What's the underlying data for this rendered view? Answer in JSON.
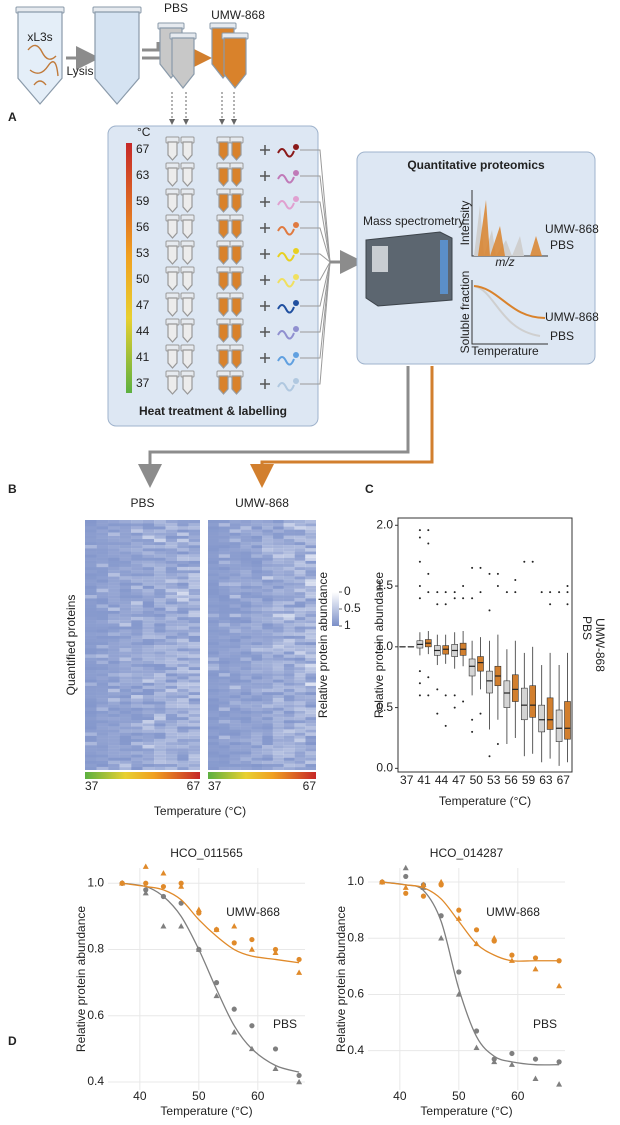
{
  "panel_labels": [
    "A",
    "B",
    "C",
    "D"
  ],
  "schematic": {
    "sample": "xL3s",
    "step": "Lysis",
    "control": "PBS",
    "treatment": "UMW-868",
    "temperature_unit": "°C",
    "temperatures": [
      67,
      63,
      59,
      56,
      53,
      50,
      47,
      44,
      41,
      37
    ],
    "heat_title": "Heat treatment & labelling",
    "proteomics_title": "Quantitative proteomics",
    "instrument": "Mass spectrometry",
    "spectrum_y": "Intensity",
    "spectrum_x": "m/z",
    "curve_y": "Soluble fraction",
    "curve_x": "Temperature"
  },
  "heatmaps": {
    "titles": [
      "PBS",
      "UMW-868"
    ],
    "y_label": "Quantified proteins",
    "legend_title": "Relative protein abundance",
    "legend_ticks": [
      0,
      0.5,
      1
    ],
    "x_range": [
      37,
      67
    ],
    "x_label": "Temperature (°C)"
  },
  "chart_data": [
    {
      "type": "box",
      "x_label": "Temperature (°C)",
      "y_label": "Relative protein abundance",
      "categories": [
        "37",
        "41",
        "44",
        "47",
        "50",
        "53",
        "56",
        "59",
        "63",
        "67"
      ],
      "ylim": [
        -0.03,
        2.06
      ],
      "yticks": [
        {
          "value": 0,
          "label": "0.0"
        },
        {
          "value": 0.5,
          "label": "0.5"
        },
        {
          "value": 1,
          "label": "1.0"
        },
        {
          "value": 1.5,
          "label": "1.5"
        },
        {
          "value": 2,
          "label": "2.0"
        }
      ],
      "series": [
        {
          "name": "PBS",
          "color": "#d4d4d4",
          "text_color": "#8c8c8c",
          "whisker_low": [
            1,
            0.93,
            0.85,
            0.82,
            0.6,
            0.32,
            0.2,
            0.1,
            0.05,
            0.02
          ],
          "q1": [
            1,
            0.99,
            0.93,
            0.92,
            0.76,
            0.62,
            0.5,
            0.4,
            0.3,
            0.22
          ],
          "median": [
            1,
            1.02,
            0.97,
            0.97,
            0.84,
            0.72,
            0.62,
            0.52,
            0.4,
            0.33
          ],
          "q3": [
            1,
            1.05,
            1.01,
            1.02,
            0.9,
            0.8,
            0.72,
            0.66,
            0.52,
            0.48
          ],
          "whisker_high": [
            1,
            1.12,
            1.1,
            1.12,
            1.05,
            1.05,
            0.98,
            0.95,
            0.85,
            0.85
          ],
          "outliers": [
            [],
            [
              1.96,
              1.9,
              1.7,
              1.5,
              1.4,
              0.8,
              0.7,
              0.6
            ],
            [
              1.45,
              1.35,
              0.65,
              0.45
            ],
            [
              1.45,
              1.4,
              0.6,
              0.5
            ],
            [
              1.65,
              1.4,
              0.4,
              0.3
            ],
            [
              1.6,
              1.3,
              0.1
            ],
            [
              1.45
            ],
            [
              1.7
            ],
            [
              1.45
            ],
            [
              1.45
            ]
          ]
        },
        {
          "name": "UMW-868",
          "color": "#d27f2e",
          "text_color": "#d27f2e",
          "whisker_low": [
            1,
            0.94,
            0.86,
            0.84,
            0.65,
            0.4,
            0.25,
            0.12,
            0.08,
            0.05
          ],
          "q1": [
            1,
            1,
            0.94,
            0.93,
            0.8,
            0.68,
            0.55,
            0.42,
            0.32,
            0.24
          ],
          "median": [
            1,
            1.03,
            0.98,
            0.98,
            0.87,
            0.76,
            0.65,
            0.52,
            0.4,
            0.33
          ],
          "q3": [
            1,
            1.06,
            1.01,
            1.03,
            0.92,
            0.84,
            0.77,
            0.68,
            0.58,
            0.55
          ],
          "whisker_high": [
            1,
            1.13,
            1.1,
            1.13,
            1.08,
            1.1,
            1.05,
            1,
            0.95,
            0.95
          ],
          "outliers": [
            [],
            [
              1.96,
              1.85,
              1.6,
              1.45,
              0.75,
              0.6
            ],
            [
              1.45,
              1.35,
              0.6,
              0.35
            ],
            [
              1.5,
              1.4,
              0.55
            ],
            [
              1.65,
              1.45,
              0.45
            ],
            [
              1.6,
              1.5,
              0.2
            ],
            [
              1.55,
              1.45
            ],
            [
              1.7
            ],
            [
              1.45,
              1.35
            ],
            [
              1.5,
              1.45,
              1.35
            ]
          ]
        }
      ]
    },
    {
      "type": "scatter_fit",
      "title": "HCO_011565",
      "x_label": "Temperature (°C)",
      "y_label": "Relative protein abundance",
      "x": [
        37,
        41,
        44,
        47,
        50,
        53,
        56,
        59,
        63,
        67
      ],
      "xlim": [
        34.6,
        68
      ],
      "xticks": [
        40,
        50,
        60
      ],
      "ylim": [
        0.376,
        1.046
      ],
      "yticks": [
        0.4,
        0.6,
        0.8,
        {
          "value": 1,
          "label": "1.0"
        }
      ],
      "grid": true,
      "series": [
        {
          "name": "PBS",
          "color": "#7f7f7f",
          "replicate_1": [
            1,
            0.98,
            0.96,
            0.94,
            0.8,
            0.7,
            0.62,
            0.57,
            0.5,
            0.42
          ],
          "replicate_2": [
            1,
            0.97,
            0.87,
            0.87,
            0.8,
            0.66,
            0.55,
            0.5,
            0.44,
            0.4
          ],
          "fit": [
            1,
            0.99,
            0.96,
            0.9,
            0.8,
            0.68,
            0.57,
            0.5,
            0.45,
            0.43
          ]
        },
        {
          "name": "UMW-868",
          "color": "#e08a2a",
          "replicate_1": [
            1,
            1,
            0.99,
            1,
            0.91,
            0.86,
            0.82,
            0.83,
            0.8,
            0.77
          ],
          "replicate_2": [
            1,
            1.05,
            1.03,
            0.99,
            0.92,
            0.86,
            0.87,
            0.8,
            0.79,
            0.73
          ],
          "fit": [
            1,
            0.99,
            0.98,
            0.95,
            0.89,
            0.84,
            0.8,
            0.78,
            0.77,
            0.76
          ]
        }
      ]
    },
    {
      "type": "scatter_fit",
      "title": "HCO_014287",
      "x_label": "Temperature (°C)",
      "y_label": "Relative protein abundance",
      "x": [
        37,
        41,
        44,
        47,
        50,
        53,
        56,
        59,
        63,
        67
      ],
      "xlim": [
        34.6,
        68
      ],
      "xticks": [
        40,
        50,
        60
      ],
      "ylim": [
        0.26,
        1.05
      ],
      "yticks": [
        0.4,
        0.6,
        0.8,
        {
          "value": 1,
          "label": "1.0"
        }
      ],
      "grid": true,
      "series": [
        {
          "name": "PBS",
          "color": "#7f7f7f",
          "replicate_1": [
            1,
            1.02,
            0.99,
            0.88,
            0.68,
            0.47,
            0.37,
            0.39,
            0.37,
            0.36
          ],
          "replicate_2": [
            1,
            1.05,
            0.98,
            0.8,
            0.6,
            0.41,
            0.36,
            0.35,
            0.3,
            0.28
          ],
          "fit": [
            1,
            0.99,
            0.97,
            0.86,
            0.62,
            0.45,
            0.38,
            0.36,
            0.35,
            0.35
          ]
        },
        {
          "name": "UMW-868",
          "color": "#e08a2a",
          "replicate_1": [
            1,
            0.96,
            0.95,
            0.99,
            0.9,
            0.83,
            0.79,
            0.74,
            0.73,
            0.72
          ],
          "replicate_2": [
            1,
            0.98,
            0.99,
            1,
            0.87,
            0.78,
            0.8,
            0.72,
            0.69,
            0.63
          ],
          "fit": [
            1,
            0.99,
            0.98,
            0.94,
            0.86,
            0.78,
            0.74,
            0.72,
            0.72,
            0.72
          ]
        }
      ]
    }
  ]
}
